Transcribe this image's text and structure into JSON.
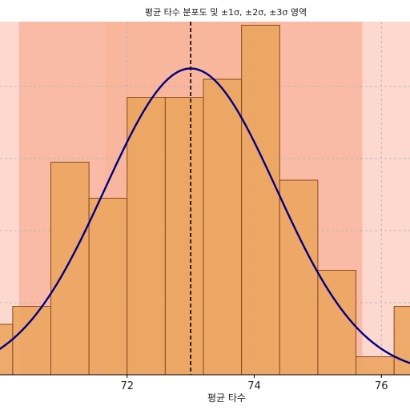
{
  "chart_data": {
    "type": "bar",
    "title": "평균 타수 분포도 및 ±1σ, ±2σ, ±3σ 영역",
    "xlabel": "평균 타수",
    "ylabel": "",
    "xlim": [
      70.0,
      76.45
    ],
    "ylim": [
      0,
      0.49
    ],
    "x_ticks": [
      72,
      74,
      76
    ],
    "grid": true,
    "bins": [
      {
        "x0": 69.6,
        "x1": 70.2,
        "value": 0.07
      },
      {
        "x0": 70.2,
        "x1": 70.8,
        "value": 0.095
      },
      {
        "x0": 70.8,
        "x1": 71.4,
        "value": 0.295
      },
      {
        "x0": 71.4,
        "x1": 72.0,
        "value": 0.245
      },
      {
        "x0": 72.0,
        "x1": 72.6,
        "value": 0.385
      },
      {
        "x0": 72.6,
        "x1": 73.2,
        "value": 0.385
      },
      {
        "x0": 73.2,
        "x1": 73.8,
        "value": 0.41
      },
      {
        "x0": 73.8,
        "x1": 74.4,
        "value": 0.485
      },
      {
        "x0": 74.4,
        "x1": 75.0,
        "value": 0.27
      },
      {
        "x0": 75.0,
        "x1": 75.6,
        "value": 0.145
      },
      {
        "x0": 75.6,
        "x1": 76.2,
        "value": 0.025
      },
      {
        "x0": 76.2,
        "x1": 76.8,
        "value": 0.095
      }
    ],
    "normal_fit": {
      "mean": 73.0,
      "std": 1.35,
      "peak_density": 0.425
    },
    "mean_line": 73.0,
    "sigma_bands": [
      {
        "k": 3,
        "lo": 68.95,
        "hi": 77.05
      },
      {
        "k": 2,
        "lo": 70.3,
        "hi": 75.7
      },
      {
        "k": 1,
        "lo": 71.65,
        "hi": 74.35
      }
    ],
    "colors": {
      "bars": "#eba55f",
      "bar_edge": "#8b4a1c",
      "curve": "#000080",
      "mean_line": "#000000",
      "band_1sigma": "#f6a888",
      "band_2sigma": "#f6a888",
      "band_3sigma": "#f9b8a8"
    }
  }
}
